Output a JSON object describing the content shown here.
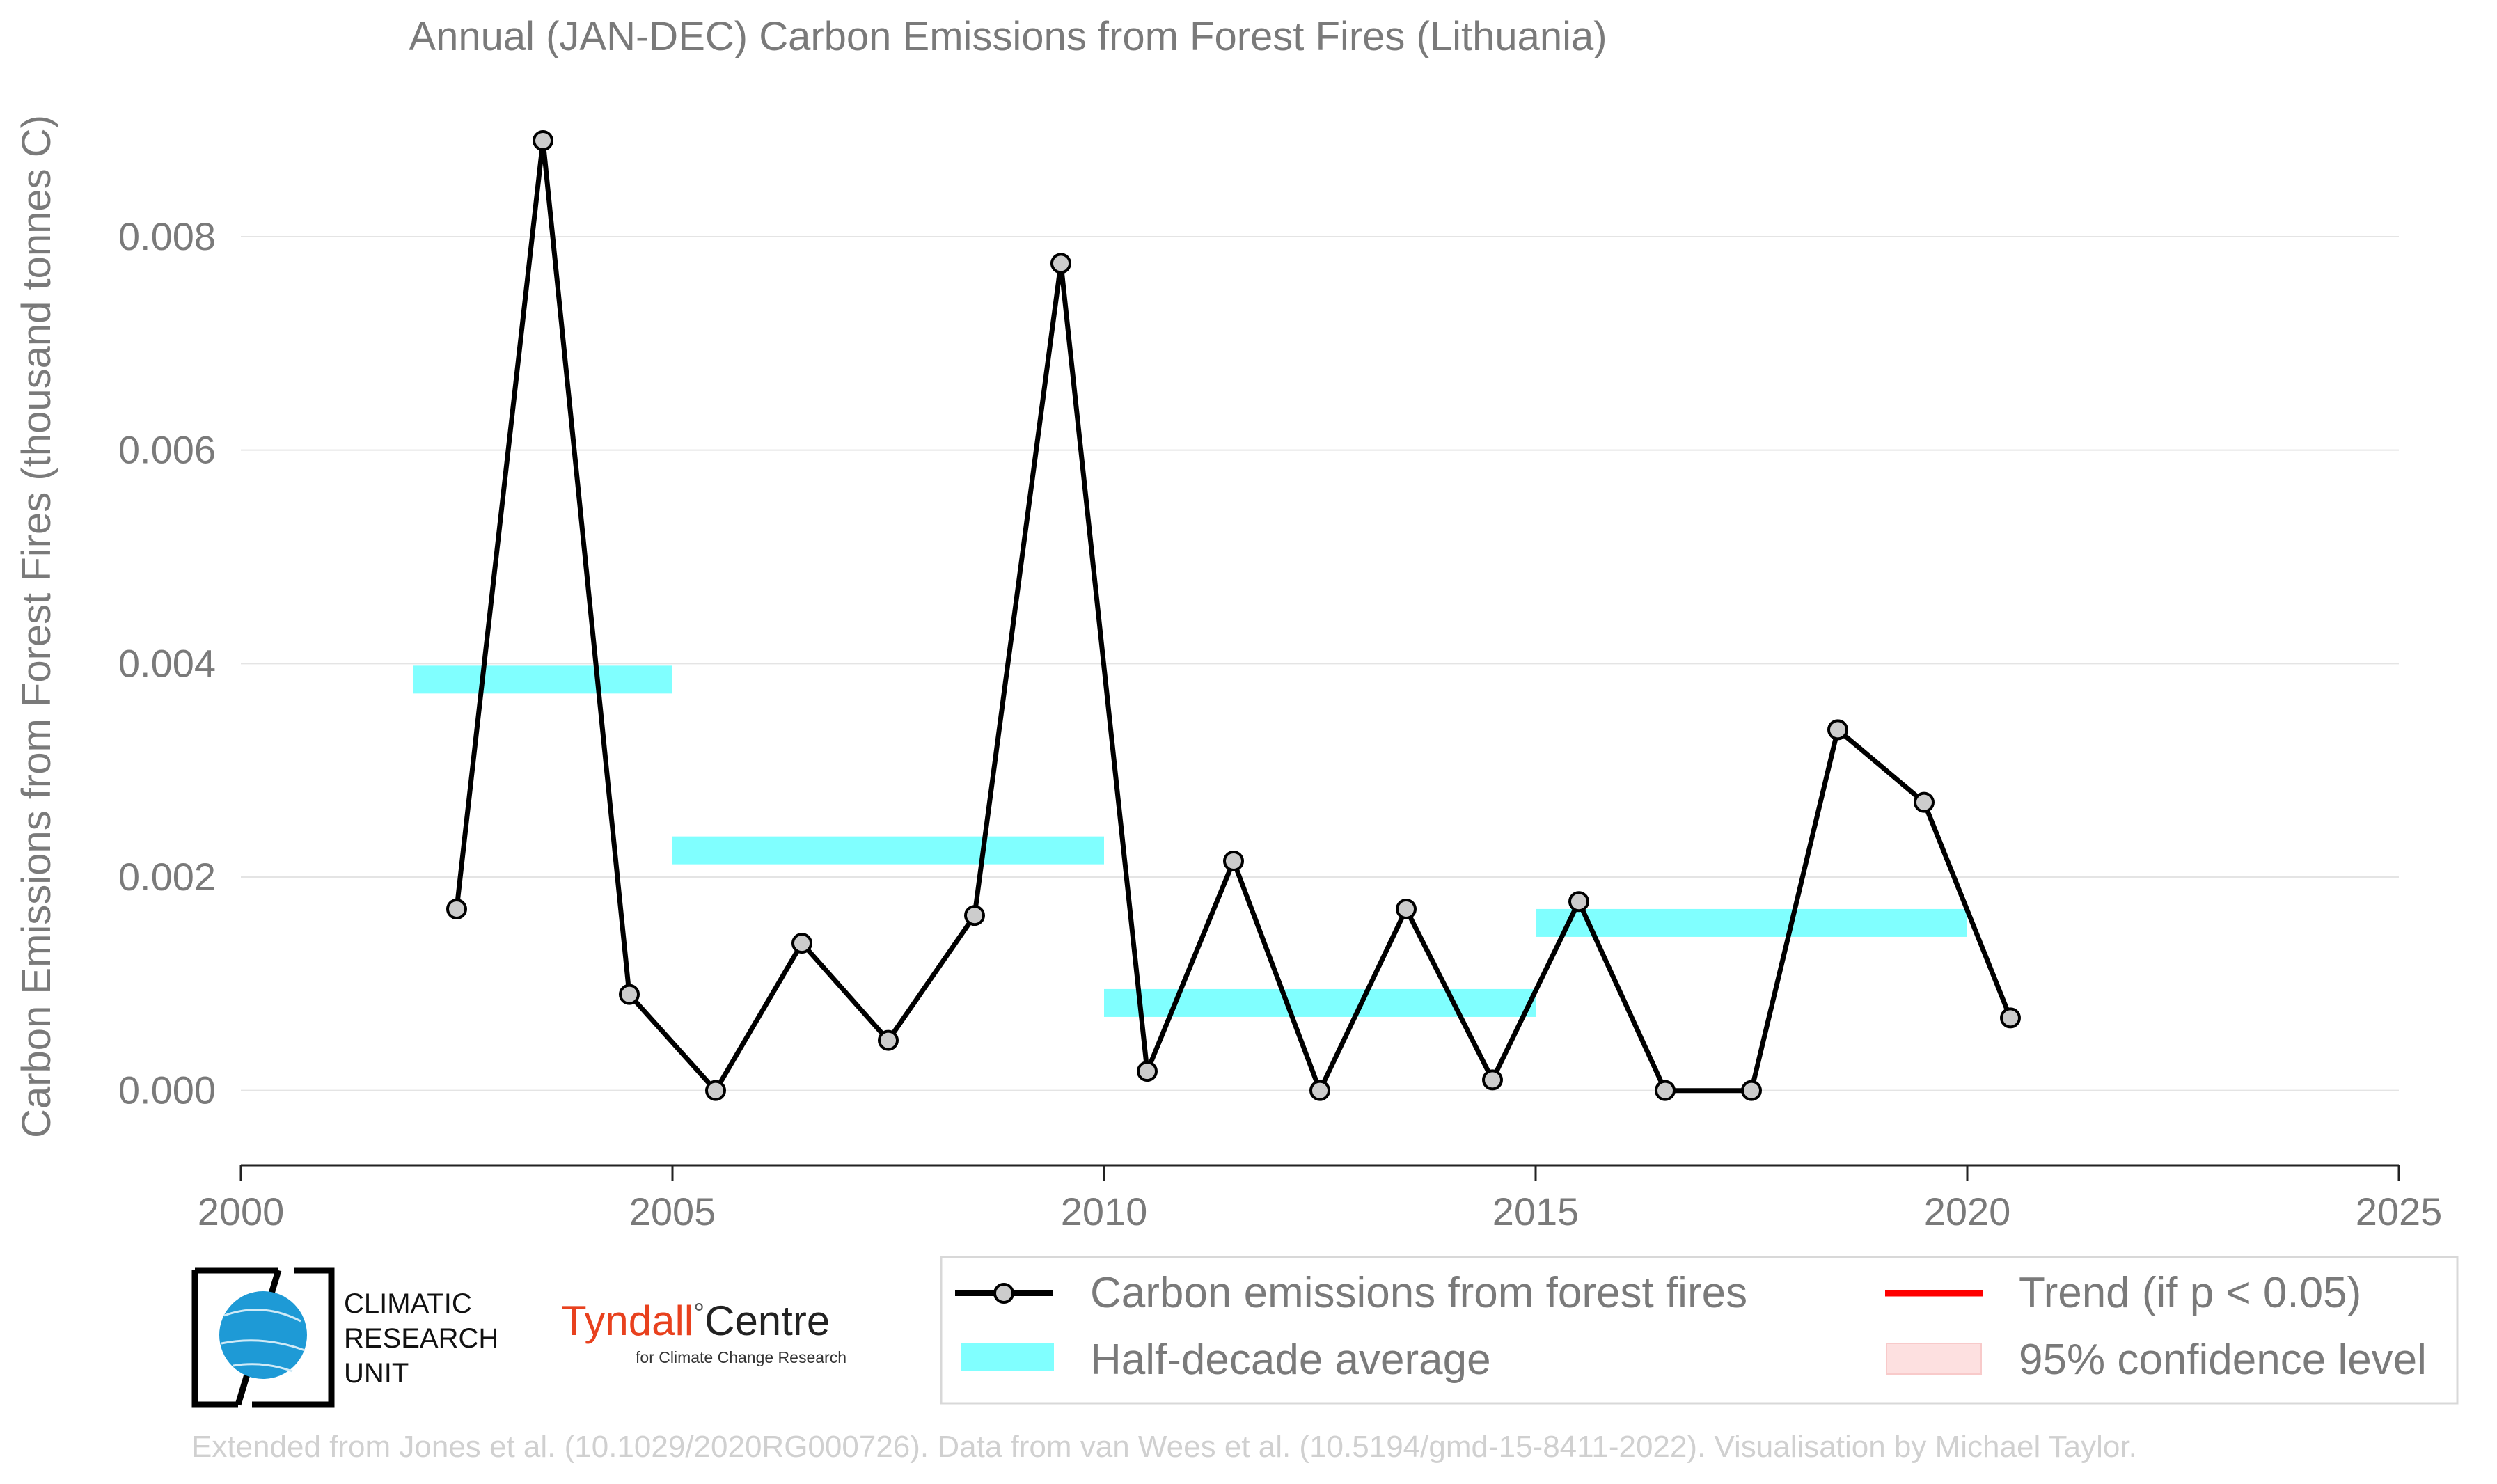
{
  "chart_data": {
    "type": "line",
    "title": "Annual (JAN-DEC) Carbon Emissions from Forest Fires (Lithuania)",
    "xlabel": "",
    "ylabel": "Carbon Emissions from Forest Fires (thousand tonnes C)",
    "xlim": [
      2000,
      2025
    ],
    "ylim": [
      -0.0007,
      0.0095
    ],
    "x_ticks": [
      "2000",
      "2005",
      "2010",
      "2015",
      "2020",
      "2025"
    ],
    "y_ticks": [
      "0.000",
      "0.002",
      "0.004",
      "0.006",
      "0.008"
    ],
    "grid": "horizontal",
    "series": [
      {
        "name": "Carbon emissions from forest fires",
        "color": "#000000",
        "marker_fill": "#cccccc",
        "x": [
          2002.5,
          2003.5,
          2004.5,
          2005.5,
          2006.5,
          2007.5,
          2008.5,
          2009.5,
          2010.5,
          2011.5,
          2012.5,
          2013.5,
          2014.5,
          2015.5,
          2016.5,
          2017.5,
          2018.5,
          2019.5,
          2020.5
        ],
        "y": [
          0.0017,
          0.0089,
          0.0009,
          0.0,
          0.00138,
          0.00047,
          0.00164,
          0.00775,
          0.00018,
          0.00215,
          0.0,
          0.0017,
          0.0001,
          0.00177,
          0.0,
          0.0,
          0.00338,
          0.0027,
          0.00068
        ]
      }
    ],
    "half_decade_average": {
      "name": "Half-decade average",
      "color": "#80ffff",
      "segments": [
        {
          "x0": 2002,
          "x1": 2005,
          "y": 0.00385
        },
        {
          "x0": 2005,
          "x1": 2010,
          "y": 0.00225
        },
        {
          "x0": 2010,
          "x1": 2015,
          "y": 0.00082
        },
        {
          "x0": 2015,
          "x1": 2020,
          "y": 0.00157
        }
      ]
    },
    "legend": {
      "placement": "bottom-right",
      "items": [
        {
          "label": "Carbon emissions from forest fires",
          "kind": "line-marker",
          "color": "#000000"
        },
        {
          "label": "Trend (if p < 0.05)",
          "kind": "line",
          "color": "#ff0000"
        },
        {
          "label": "Half-decade average",
          "kind": "patch",
          "color": "#80ffff"
        },
        {
          "label": "95% confidence level",
          "kind": "patch",
          "color": "#fde0e0"
        }
      ]
    }
  },
  "logos": {
    "cru_lines": [
      "CLIMATIC",
      "RESEARCH",
      "UNIT"
    ],
    "tyndall_main": "Tyndall",
    "tyndall_degree": "°",
    "tyndall_centre": "Centre",
    "tyndall_sub": "for Climate Change Research",
    "tyndall_color": "#e8411e",
    "globe_color": "#1e9ad6"
  },
  "footer": "Extended from Jones et al. (10.1029/2020RG000726). Data from van Wees et al. (10.5194/gmd-15-8411-2022). Visualisation by Michael Taylor."
}
